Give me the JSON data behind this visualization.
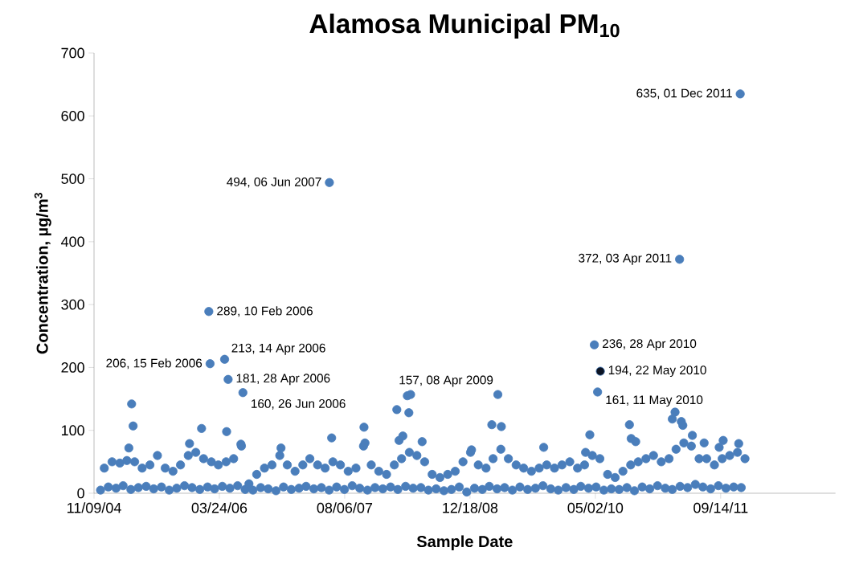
{
  "chart_data": {
    "type": "scatter",
    "title": "Alamosa Municipal **PM$_{10}$**",
    "xlabel": "Sample Date",
    "ylabel": "Concentration, µg/m$^{3}$",
    "marker": "circle",
    "xlim": [
      "2004-11-09",
      "2012-12-15"
    ],
    "xticks": [
      {
        "value": "2004-11-09",
        "label": "11/09/04"
      },
      {
        "value": "2006-03-24",
        "label": "03/24/06"
      },
      {
        "value": "2007-08-06",
        "label": "08/06/07"
      },
      {
        "value": "2008-12-18",
        "label": "12/18/08"
      },
      {
        "value": "2010-05-02",
        "label": "05/02/10"
      },
      {
        "value": "2011-09-14",
        "label": "09/14/11"
      }
    ],
    "ylim": [
      0,
      700
    ],
    "yticks": [
      0,
      100,
      200,
      300,
      400,
      500,
      600,
      700
    ],
    "series": [
      {
        "color": "#4a7ebb",
        "x": [
          "2004-12-05",
          "2004-12-20",
          "2005-01-05",
          "2005-01-20",
          "2005-02-05",
          "2005-02-20",
          "2005-03-05",
          "2005-03-20",
          "2005-04-05",
          "2005-04-20",
          "2005-05-05",
          "2005-05-20",
          "2005-06-05",
          "2005-06-20",
          "2005-07-05",
          "2005-07-20",
          "2005-08-05",
          "2005-08-20",
          "2005-09-05",
          "2005-09-20",
          "2005-10-05",
          "2005-10-20",
          "2005-11-05",
          "2005-11-20",
          "2005-12-05",
          "2005-12-20",
          "2006-01-05",
          "2006-01-20",
          "2006-02-05",
          "2006-02-20",
          "2006-03-05",
          "2006-03-20",
          "2006-04-05",
          "2006-04-20",
          "2006-05-05",
          "2006-05-20",
          "2006-06-05",
          "2006-06-20",
          "2006-07-05",
          "2006-07-20",
          "2006-08-05",
          "2006-08-20",
          "2006-09-05",
          "2006-09-20",
          "2006-10-05",
          "2006-10-20",
          "2006-11-05",
          "2006-11-20",
          "2006-12-05",
          "2006-12-20",
          "2007-01-05",
          "2007-01-20",
          "2007-02-05",
          "2007-02-20",
          "2007-03-05",
          "2007-03-20",
          "2007-04-05",
          "2007-04-20",
          "2007-05-05",
          "2007-05-20",
          "2007-06-05",
          "2007-06-20",
          "2007-07-05",
          "2007-07-20",
          "2007-08-05",
          "2007-08-20",
          "2007-09-05",
          "2007-09-20",
          "2007-10-05",
          "2007-10-20",
          "2007-11-05",
          "2007-11-20",
          "2007-12-05",
          "2007-12-20",
          "2008-01-05",
          "2008-01-20",
          "2008-02-05",
          "2008-02-20",
          "2008-03-05",
          "2008-03-20",
          "2008-04-05",
          "2008-04-20",
          "2008-05-05",
          "2008-05-20",
          "2008-06-05",
          "2008-06-20",
          "2008-07-05",
          "2008-07-20",
          "2008-08-05",
          "2008-08-20",
          "2008-09-05",
          "2008-09-20",
          "2008-10-05",
          "2008-10-20",
          "2008-11-05",
          "2008-11-20",
          "2008-12-05",
          "2008-12-20",
          "2009-01-05",
          "2009-01-20",
          "2009-02-05",
          "2009-02-20",
          "2009-03-05",
          "2009-03-20",
          "2009-04-05",
          "2009-04-20",
          "2009-05-05",
          "2009-05-20",
          "2009-06-05",
          "2009-06-20",
          "2009-07-05",
          "2009-07-20",
          "2009-08-05",
          "2009-08-20",
          "2009-09-05",
          "2009-09-20",
          "2009-10-05",
          "2009-10-20",
          "2009-11-05",
          "2009-11-20",
          "2009-12-05",
          "2009-12-20",
          "2010-01-05",
          "2010-01-20",
          "2010-02-05",
          "2010-02-20",
          "2010-03-05",
          "2010-03-20",
          "2010-04-05",
          "2010-04-20",
          "2010-05-05",
          "2010-05-20",
          "2010-06-05",
          "2010-06-20",
          "2010-07-05",
          "2010-07-20",
          "2010-08-05",
          "2010-08-20",
          "2010-09-05",
          "2010-09-20",
          "2010-10-05",
          "2010-10-20",
          "2010-11-05",
          "2010-11-20",
          "2010-12-05",
          "2010-12-20",
          "2011-01-05",
          "2011-01-20",
          "2011-02-05",
          "2011-02-20",
          "2011-03-05",
          "2011-03-20",
          "2011-04-05",
          "2011-04-20",
          "2011-05-05",
          "2011-05-20",
          "2011-06-05",
          "2011-06-20",
          "2011-07-05",
          "2011-07-20",
          "2011-08-05",
          "2011-08-20",
          "2011-09-05",
          "2011-09-20",
          "2011-10-05",
          "2011-10-20",
          "2011-11-05",
          "2011-11-20",
          "2011-12-05",
          "2011-12-20",
          "2005-04-08",
          "2005-04-14",
          "2005-03-28",
          "2005-11-25",
          "2006-01-12",
          "2006-04-22",
          "2006-06-18",
          "2006-11-25",
          "2007-06-15",
          "2007-10-22",
          "2007-10-26",
          "2008-03-01",
          "2008-03-10",
          "2008-03-25",
          "2008-04-12",
          "2008-04-25",
          "2008-04-18",
          "2008-06-10",
          "2008-12-24",
          "2009-03-15",
          "2009-04-22",
          "2009-10-08",
          "2010-03-24",
          "2010-04-10",
          "2010-09-15",
          "2010-09-22",
          "2010-10-10",
          "2011-03-05",
          "2011-03-16",
          "2011-04-10",
          "2011-04-16",
          "2011-05-24",
          "2011-07-10",
          "2011-09-08",
          "2011-09-24",
          "2011-11-25",
          "2006-02-10",
          "2006-02-15",
          "2006-04-14",
          "2006-04-28",
          "2006-06-26",
          "2007-06-06",
          "2009-04-08",
          "2010-04-28",
          "2010-05-11",
          "2011-04-03",
          "2011-12-01"
        ],
        "values": [
          5,
          40,
          10,
          50,
          8,
          48,
          12,
          52,
          6,
          50,
          9,
          40,
          11,
          45,
          7,
          60,
          10,
          40,
          5,
          35,
          8,
          45,
          12,
          60,
          9,
          65,
          6,
          55,
          10,
          50,
          7,
          45,
          11,
          50,
          8,
          55,
          12,
          75,
          6,
          15,
          5,
          30,
          9,
          40,
          7,
          45,
          4,
          60,
          10,
          45,
          6,
          35,
          8,
          45,
          11,
          55,
          7,
          45,
          9,
          40,
          5,
          50,
          10,
          45,
          6,
          35,
          12,
          40,
          8,
          75,
          5,
          45,
          9,
          35,
          7,
          30,
          10,
          45,
          6,
          55,
          11,
          65,
          8,
          60,
          9,
          50,
          5,
          30,
          7,
          25,
          4,
          30,
          6,
          35,
          10,
          50,
          2,
          65,
          8,
          45,
          6,
          40,
          11,
          55,
          7,
          70,
          9,
          55,
          5,
          45,
          10,
          40,
          6,
          35,
          8,
          40,
          12,
          45,
          7,
          40,
          5,
          45,
          9,
          50,
          6,
          40,
          11,
          45,
          8,
          60,
          10,
          55,
          5,
          30,
          7,
          25,
          6,
          35,
          9,
          45,
          4,
          50,
          10,
          55,
          7,
          60,
          12,
          50,
          8,
          55,
          6,
          70,
          11,
          80,
          9,
          75,
          14,
          55,
          10,
          55,
          7,
          45,
          12,
          55,
          8,
          60,
          10,
          65,
          9,
          55,
          142,
          107,
          72,
          79,
          103,
          98,
          78,
          72,
          88,
          105,
          80,
          133,
          84,
          91,
          155,
          157,
          128,
          82,
          69,
          109,
          106,
          73,
          65,
          93,
          109,
          87,
          82,
          118,
          129,
          114,
          108,
          92,
          80,
          73,
          84,
          79,
          289,
          206,
          213,
          181,
          160,
          494,
          157,
          236,
          161,
          372,
          635
        ]
      },
      {
        "color": "#0c1424",
        "x": [
          "2010-05-22"
        ],
        "values": [
          194
        ]
      }
    ],
    "annotations": [
      {
        "text": "635, 01 Dec 2011",
        "x": "2011-12-01",
        "y": 635
      },
      {
        "text": "494, 06 Jun 2007",
        "x": "2007-06-06",
        "y": 494
      },
      {
        "text": "372, 03 Apr 2011",
        "x": "2011-04-03",
        "y": 372
      },
      {
        "text": "289, 10 Feb 2006",
        "x": "2006-02-10",
        "y": 289
      },
      {
        "text": "213, 14 Apr 2006",
        "x": "2006-04-14",
        "y": 213
      },
      {
        "text": "206, 15 Feb 2006",
        "x": "2006-02-15",
        "y": 206
      },
      {
        "text": "181,  28 Apr 2006",
        "x": "2006-04-28",
        "y": 181
      },
      {
        "text": "160, 26 Jun 2006",
        "x": "2006-06-26",
        "y": 160
      },
      {
        "text": "157, 08 Apr 2009",
        "x": "2009-04-08",
        "y": 157
      },
      {
        "text": "236, 28 Apr 2010",
        "x": "2010-04-28",
        "y": 236
      },
      {
        "text": "194, 22 May 2010",
        "x": "2010-05-22",
        "y": 194
      },
      {
        "text": "161, 11 May 2010",
        "x": "2010-05-11",
        "y": 161
      }
    ]
  }
}
